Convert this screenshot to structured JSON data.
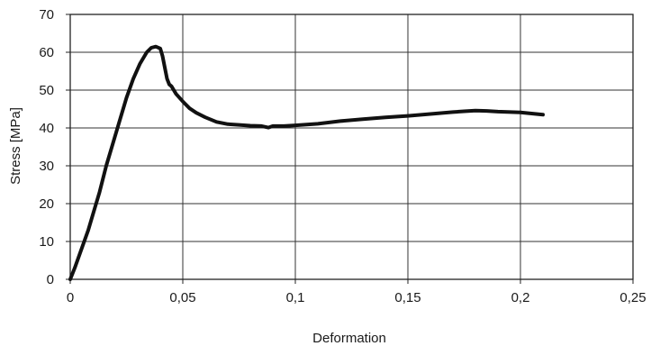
{
  "chart_data": {
    "type": "line",
    "title": "",
    "xlabel": "Deformation",
    "ylabel": "Stress [MPa]",
    "xlim": [
      0,
      0.25
    ],
    "ylim": [
      0,
      70
    ],
    "x_ticks": [
      0,
      0.05,
      0.1,
      0.15,
      0.2,
      0.25
    ],
    "x_tick_labels": [
      "0",
      "0,05",
      "0,1",
      "0,15",
      "0,2",
      "0,25"
    ],
    "y_ticks": [
      0,
      10,
      20,
      30,
      40,
      50,
      60,
      70
    ],
    "y_tick_labels": [
      "0",
      "10",
      "20",
      "30",
      "40",
      "50",
      "60",
      "70"
    ],
    "grid": true,
    "legend": "none",
    "line_color": "#111111",
    "series": [
      {
        "x": [
          0,
          0.002,
          0.005,
          0.008,
          0.01,
          0.013,
          0.016,
          0.019,
          0.022,
          0.025,
          0.028,
          0.031,
          0.034,
          0.036,
          0.038,
          0.04,
          0.041,
          0.042,
          0.043,
          0.044,
          0.045,
          0.047,
          0.05,
          0.053,
          0.056,
          0.06,
          0.065,
          0.07,
          0.075,
          0.08,
          0.085,
          0.088,
          0.09,
          0.095,
          0.1,
          0.105,
          0.11,
          0.12,
          0.13,
          0.14,
          0.15,
          0.16,
          0.17,
          0.175,
          0.18,
          0.185,
          0.19,
          0.2,
          0.205,
          0.21
        ],
        "y": [
          0,
          3,
          8,
          13,
          17,
          23,
          30,
          36,
          42,
          48,
          53,
          57,
          60,
          61.2,
          61.5,
          61,
          59,
          56,
          53,
          51.5,
          51,
          49,
          47,
          45.2,
          44,
          42.8,
          41.6,
          41,
          40.8,
          40.6,
          40.5,
          40.1,
          40.5,
          40.5,
          40.7,
          40.9,
          41.1,
          41.8,
          42.3,
          42.8,
          43.2,
          43.7,
          44.2,
          44.4,
          44.6,
          44.5,
          44.3,
          44.1,
          43.8,
          43.5
        ]
      }
    ]
  }
}
